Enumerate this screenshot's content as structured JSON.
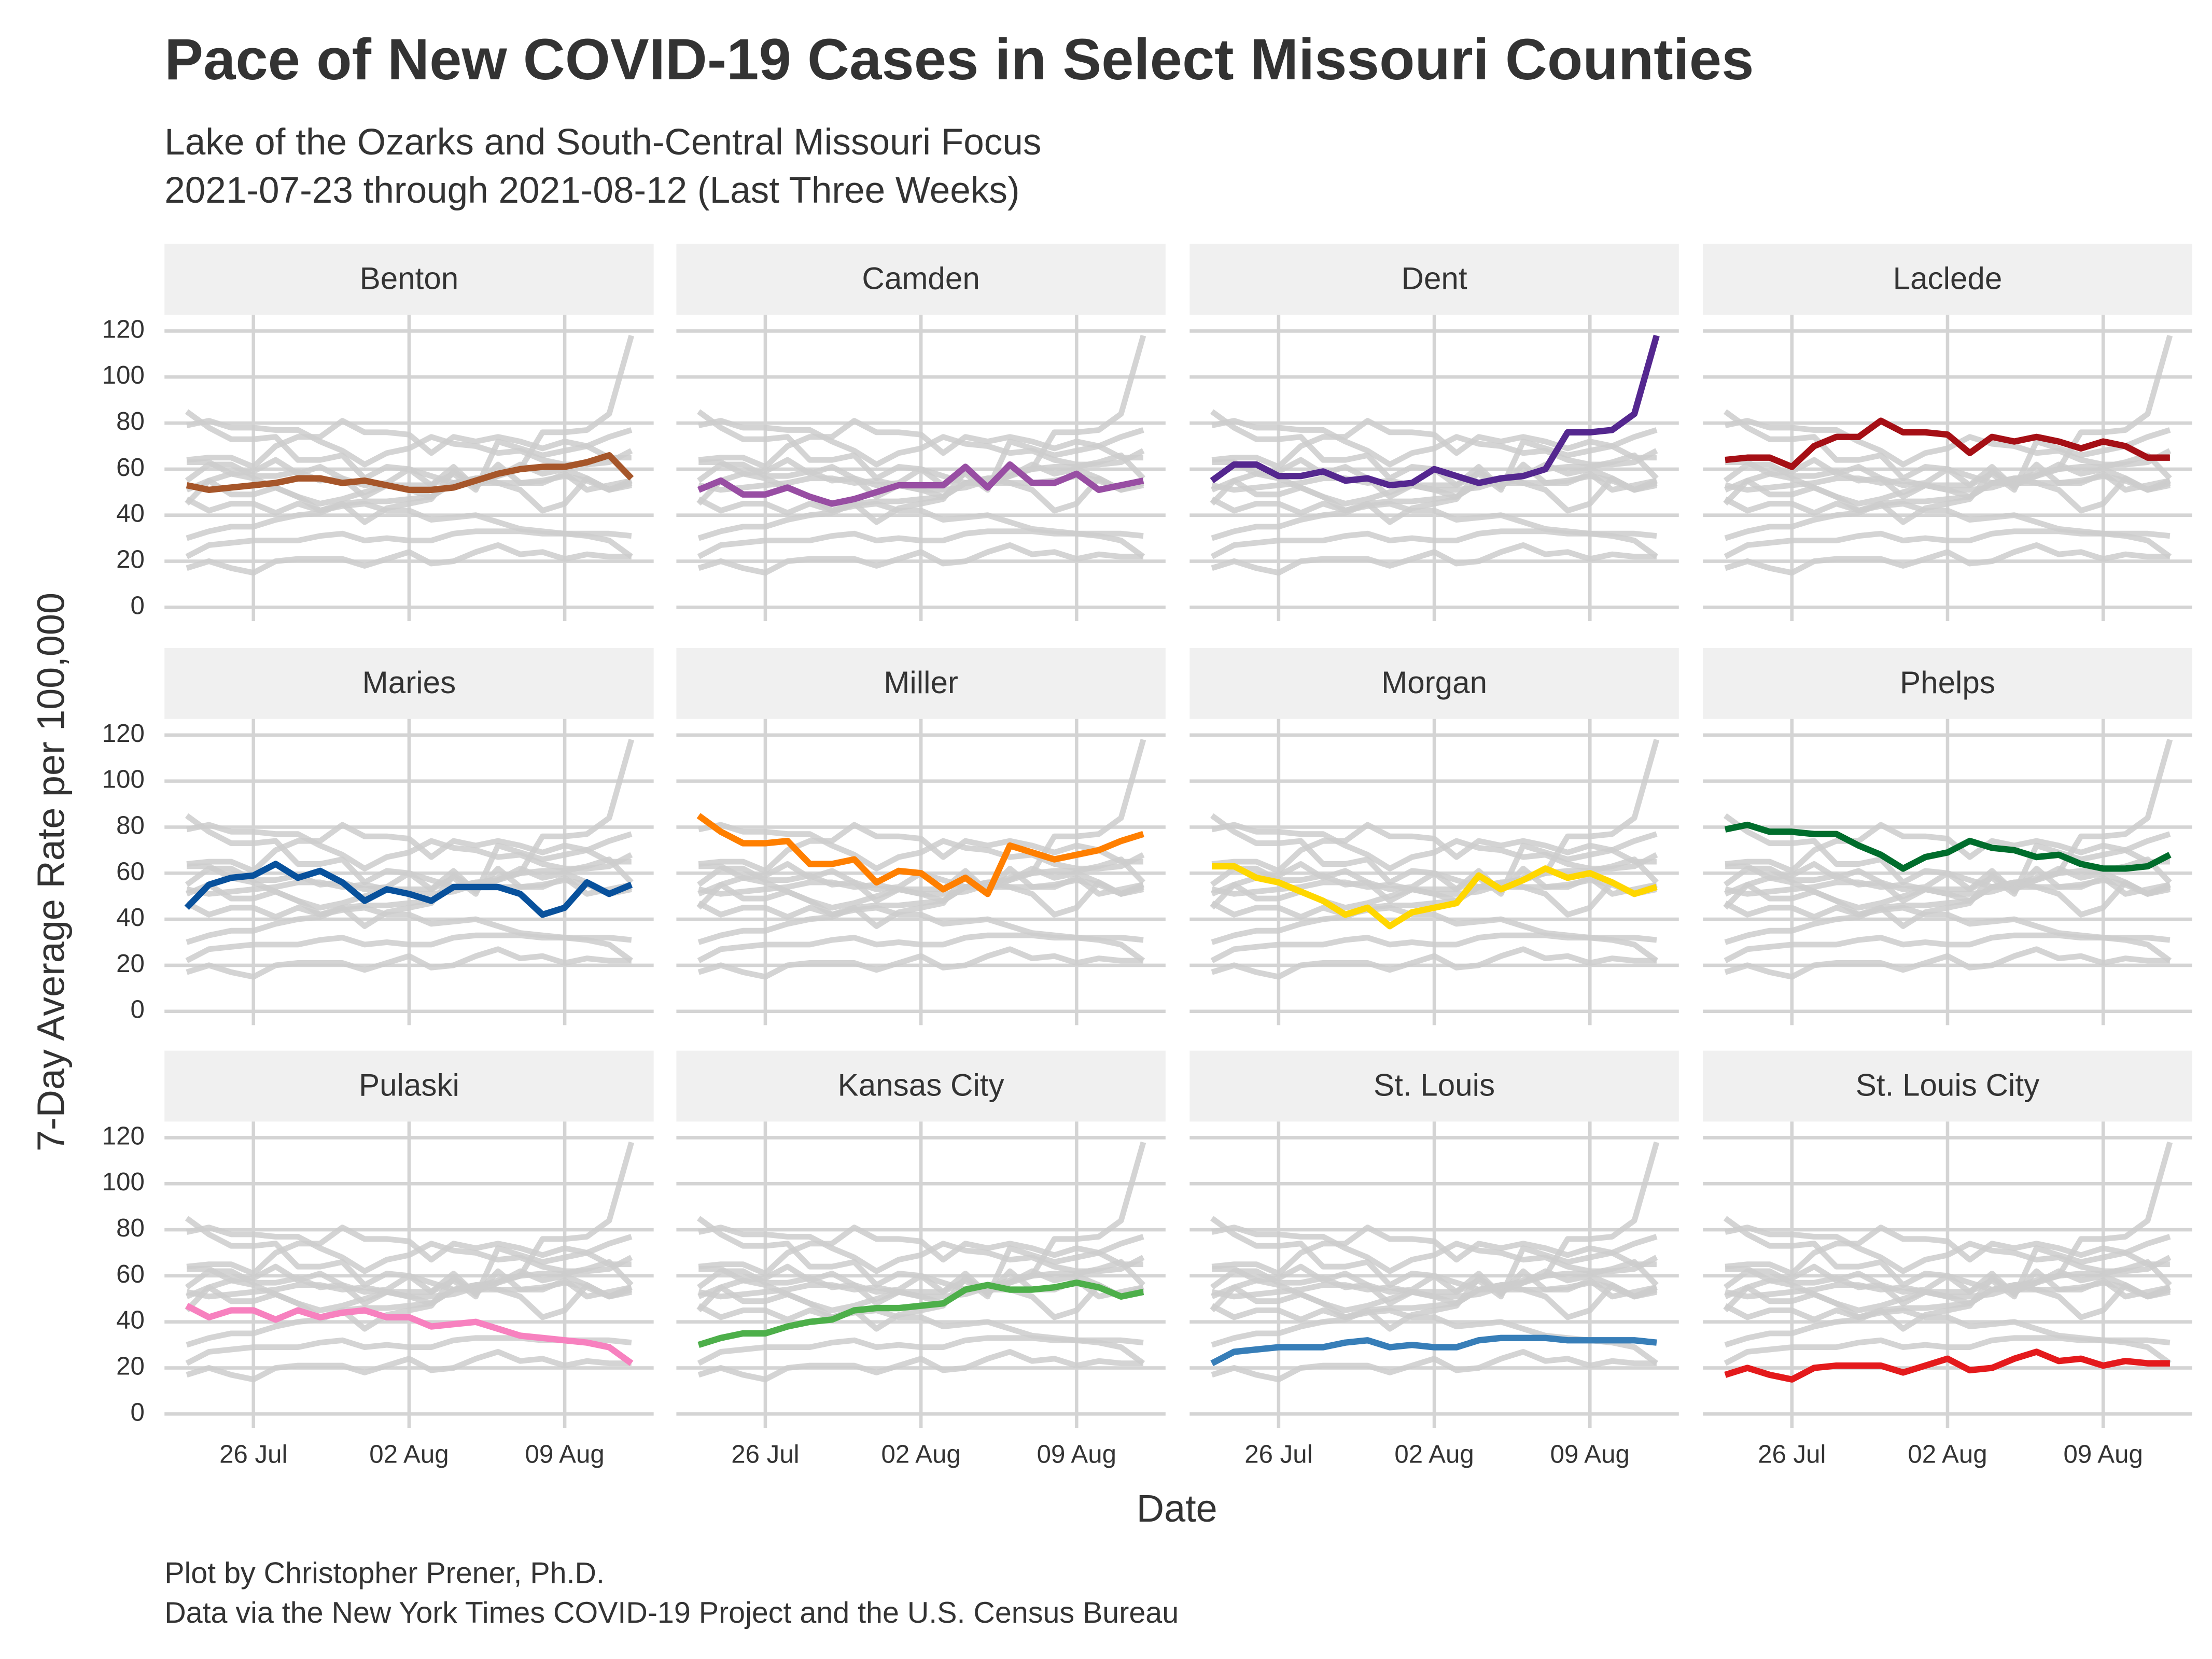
{
  "chart_data": {
    "type": "line",
    "facet": true,
    "title": "Pace of New COVID-19 Cases in Select Missouri Counties",
    "subtitle": [
      "Lake of the Ozarks and South-Central Missouri Focus",
      "2021-07-23 through 2021-08-12 (Last Three Weeks)"
    ],
    "caption": [
      "Plot by Christopher Prener, Ph.D.",
      "Data via the New York Times COVID-19 Project and the U.S. Census Bureau"
    ],
    "x_label": "Date",
    "y_label": "7-Day Average Rate per 100,000",
    "x": [
      "2021-07-23",
      "2021-07-24",
      "2021-07-25",
      "2021-07-26",
      "2021-07-27",
      "2021-07-28",
      "2021-07-29",
      "2021-07-30",
      "2021-07-31",
      "2021-08-01",
      "2021-08-02",
      "2021-08-03",
      "2021-08-04",
      "2021-08-05",
      "2021-08-06",
      "2021-08-07",
      "2021-08-08",
      "2021-08-09",
      "2021-08-10",
      "2021-08-11",
      "2021-08-12"
    ],
    "xlim": [
      "2021-07-22",
      "2021-08-13"
    ],
    "xticks": [
      {
        "value": "2021-07-26",
        "label": "26 Jul"
      },
      {
        "value": "2021-08-02",
        "label": "02 Aug"
      },
      {
        "value": "2021-08-09",
        "label": "09 Aug"
      }
    ],
    "ylim": [
      -6,
      127
    ],
    "yticks": [
      0,
      20,
      40,
      60,
      80,
      100,
      120
    ],
    "grid": true,
    "background_color": "#cccccc",
    "series": [
      {
        "name": "Benton",
        "color": "#a6562a",
        "values": [
          53,
          51,
          52,
          53,
          54,
          56,
          56,
          54,
          55,
          53,
          51,
          51,
          52,
          55,
          58,
          60,
          61,
          61,
          63,
          66,
          56
        ]
      },
      {
        "name": "Camden",
        "color": "#984ea3",
        "values": [
          51,
          55,
          49,
          49,
          52,
          48,
          45,
          47,
          50,
          53,
          53,
          53,
          61,
          52,
          62,
          54,
          54,
          58,
          51,
          53,
          55
        ]
      },
      {
        "name": "Dent",
        "color": "#54278f",
        "values": [
          55,
          62,
          62,
          57,
          57,
          59,
          55,
          56,
          53,
          54,
          60,
          57,
          54,
          56,
          57,
          60,
          76,
          76,
          77,
          84,
          118
        ]
      },
      {
        "name": "Laclede",
        "color": "#a50f15",
        "values": [
          64,
          65,
          65,
          61,
          70,
          74,
          74,
          81,
          76,
          76,
          75,
          67,
          74,
          72,
          74,
          72,
          69,
          72,
          70,
          65,
          65
        ]
      },
      {
        "name": "Maries",
        "color": "#08519c",
        "values": [
          45,
          55,
          58,
          59,
          64,
          58,
          61,
          56,
          48,
          53,
          51,
          48,
          54,
          54,
          54,
          51,
          42,
          45,
          56,
          51,
          55
        ]
      },
      {
        "name": "Miller",
        "color": "#ff7f00",
        "values": [
          85,
          78,
          73,
          73,
          74,
          64,
          64,
          66,
          56,
          61,
          60,
          53,
          58,
          51,
          72,
          69,
          66,
          68,
          70,
          74,
          77
        ]
      },
      {
        "name": "Morgan",
        "color": "#ffd700",
        "values": [
          63,
          63,
          58,
          56,
          52,
          48,
          42,
          45,
          37,
          43,
          45,
          47,
          59,
          53,
          57,
          62,
          58,
          60,
          56,
          51,
          54
        ]
      },
      {
        "name": "Phelps",
        "color": "#006d2c",
        "values": [
          79,
          81,
          78,
          78,
          77,
          77,
          72,
          68,
          62,
          67,
          69,
          74,
          71,
          70,
          67,
          68,
          64,
          62,
          62,
          63,
          68
        ]
      },
      {
        "name": "Pulaski",
        "color": "#f781bf",
        "values": [
          47,
          42,
          45,
          45,
          41,
          45,
          42,
          44,
          45,
          42,
          42,
          38,
          39,
          40,
          37,
          34,
          33,
          32,
          31,
          29,
          22
        ]
      },
      {
        "name": "Kansas City",
        "color": "#4daf4a",
        "values": [
          30,
          33,
          35,
          35,
          38,
          40,
          41,
          45,
          46,
          46,
          47,
          48,
          54,
          56,
          54,
          54,
          55,
          57,
          55,
          51,
          53
        ]
      },
      {
        "name": "St. Louis",
        "color": "#377eb8",
        "values": [
          22,
          27,
          28,
          29,
          29,
          29,
          31,
          32,
          29,
          30,
          29,
          29,
          32,
          33,
          33,
          33,
          32,
          32,
          32,
          32,
          31
        ]
      },
      {
        "name": "St. Louis City",
        "color": "#e41a1c",
        "values": [
          17,
          20,
          17,
          15,
          20,
          21,
          21,
          21,
          18,
          21,
          24,
          19,
          20,
          24,
          27,
          23,
          24,
          21,
          23,
          22,
          22
        ]
      }
    ]
  }
}
